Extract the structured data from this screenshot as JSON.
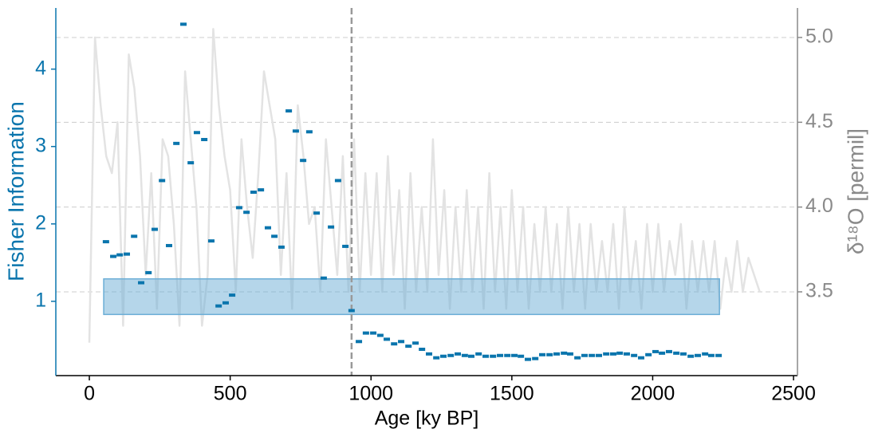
{
  "chart_data": {
    "type": "scatter",
    "xlabel": "Age [ky BP]",
    "ylabel": "Fisher Information",
    "y2label": "δ¹⁸O [permil]",
    "xlim": [
      -119,
      2514
    ],
    "xticks": [
      0,
      500,
      1000,
      1500,
      2000,
      2500
    ],
    "ylim": [
      0.04,
      4.79
    ],
    "yticks": [
      1,
      2,
      3,
      4
    ],
    "y2lim": [
      3.006,
      5.174
    ],
    "y2ticks": [
      3.5,
      {
        "value": 4,
        "label": "4.0"
      },
      4.5,
      {
        "value": 5,
        "label": "5.0"
      }
    ],
    "grid": true,
    "ycolor": "#0a75ad",
    "y2color": "#8a8a8a",
    "vline": 931,
    "band": {
      "x": [
        51,
        2237
      ],
      "y": [
        0.83,
        1.29
      ],
      "color": "#6baed6"
    },
    "series": [
      {
        "color": "#0a75ad",
        "x": [
          59,
          85,
          108,
          133,
          159,
          184,
          210,
          232,
          258,
          283,
          309,
          334,
          360,
          382,
          408,
          433,
          459,
          484,
          507,
          532,
          558,
          583,
          609,
          634,
          657,
          682,
          708,
          733,
          759,
          781,
          807,
          832,
          858,
          883,
          909,
          931,
          957,
          982,
          1008,
          1033,
          1056,
          1082,
          1107,
          1133,
          1158,
          1181,
          1206,
          1232,
          1257,
          1283,
          1308,
          1333,
          1356,
          1382,
          1407,
          1433,
          1458,
          1484,
          1509,
          1532,
          1557,
          1583,
          1608,
          1634,
          1659,
          1685,
          1707,
          1733,
          1758,
          1784,
          1809,
          1835,
          1860,
          1883,
          1908,
          1934,
          1959,
          1985,
          2010,
          2033,
          2058,
          2084,
          2109,
          2135,
          2160,
          2186,
          2208,
          2234
        ],
        "values": [
          1.77,
          1.58,
          1.6,
          1.61,
          1.84,
          1.24,
          1.37,
          1.93,
          2.56,
          1.72,
          3.04,
          4.58,
          2.79,
          3.18,
          3.09,
          1.78,
          0.94,
          0.98,
          1.08,
          2.21,
          2.15,
          2.41,
          2.44,
          1.95,
          1.84,
          1.7,
          3.46,
          3.2,
          2.82,
          3.19,
          2.14,
          1.3,
          1.96,
          2.56,
          1.71,
          0.88,
          0.48,
          0.59,
          0.59,
          0.56,
          0.51,
          0.45,
          0.48,
          0.42,
          0.46,
          0.38,
          0.32,
          0.27,
          0.29,
          0.3,
          0.32,
          0.3,
          0.29,
          0.32,
          0.29,
          0.29,
          0.3,
          0.3,
          0.3,
          0.29,
          0.25,
          0.26,
          0.31,
          0.31,
          0.32,
          0.33,
          0.32,
          0.27,
          0.3,
          0.3,
          0.3,
          0.32,
          0.32,
          0.33,
          0.32,
          0.3,
          0.27,
          0.31,
          0.35,
          0.33,
          0.35,
          0.33,
          0.32,
          0.29,
          0.3,
          0.32,
          0.3,
          0.3
        ]
      },
      {
        "type": "line",
        "axis": "y2",
        "color": "#e3e3e3",
        "x": [
          0,
          20,
          40,
          60,
          80,
          100,
          120,
          140,
          160,
          180,
          200,
          220,
          240,
          260,
          280,
          300,
          320,
          340,
          360,
          380,
          400,
          420,
          440,
          460,
          480,
          500,
          520,
          540,
          560,
          580,
          600,
          620,
          640,
          660,
          680,
          700,
          720,
          740,
          760,
          780,
          800,
          820,
          840,
          860,
          880,
          900,
          920,
          940,
          960,
          980,
          1000,
          1020,
          1040,
          1060,
          1080,
          1100,
          1120,
          1140,
          1160,
          1180,
          1200,
          1220,
          1240,
          1260,
          1280,
          1300,
          1320,
          1340,
          1360,
          1380,
          1400,
          1420,
          1440,
          1460,
          1480,
          1500,
          1520,
          1540,
          1560,
          1580,
          1600,
          1620,
          1640,
          1660,
          1680,
          1700,
          1720,
          1740,
          1760,
          1780,
          1800,
          1820,
          1840,
          1860,
          1880,
          1900,
          1920,
          1940,
          1960,
          1980,
          2000,
          2020,
          2040,
          2060,
          2080,
          2100,
          2120,
          2140,
          2160,
          2180,
          2200,
          2220,
          2240,
          2260,
          2280,
          2300,
          2320,
          2340,
          2360,
          2380
        ],
        "values": [
          3.2,
          5.0,
          4.6,
          4.3,
          4.2,
          4.5,
          3.3,
          4.9,
          4.7,
          4.3,
          3.6,
          4.2,
          3.4,
          4.4,
          4.3,
          3.9,
          3.3,
          4.8,
          4.4,
          4.0,
          3.3,
          3.6,
          5.05,
          4.6,
          4.3,
          4.1,
          3.5,
          4.4,
          4.0,
          3.7,
          4.2,
          4.8,
          4.6,
          4.4,
          3.6,
          4.2,
          3.4,
          4.6,
          4.3,
          3.9,
          4.0,
          3.5,
          4.4,
          4.0,
          3.6,
          4.3,
          3.5,
          4.4,
          3.5,
          4.2,
          3.6,
          4.2,
          3.5,
          4.3,
          3.6,
          4.1,
          3.4,
          4.2,
          3.5,
          4.0,
          3.5,
          4.4,
          3.6,
          4.1,
          3.4,
          4.0,
          3.5,
          4.1,
          3.5,
          4.0,
          3.4,
          4.2,
          3.5,
          4.0,
          3.4,
          4.1,
          3.5,
          4.0,
          3.4,
          3.9,
          3.5,
          4.0,
          3.5,
          3.9,
          3.4,
          4.0,
          3.5,
          3.9,
          3.4,
          3.9,
          3.5,
          3.8,
          3.5,
          3.9,
          3.4,
          4.0,
          3.5,
          3.8,
          3.4,
          3.9,
          3.5,
          3.9,
          3.5,
          3.8,
          3.6,
          3.9,
          3.4,
          3.8,
          3.5,
          3.8,
          3.5,
          3.8,
          3.4,
          3.7,
          3.5,
          3.8,
          3.5,
          3.7,
          3.6,
          3.5
        ]
      }
    ]
  }
}
